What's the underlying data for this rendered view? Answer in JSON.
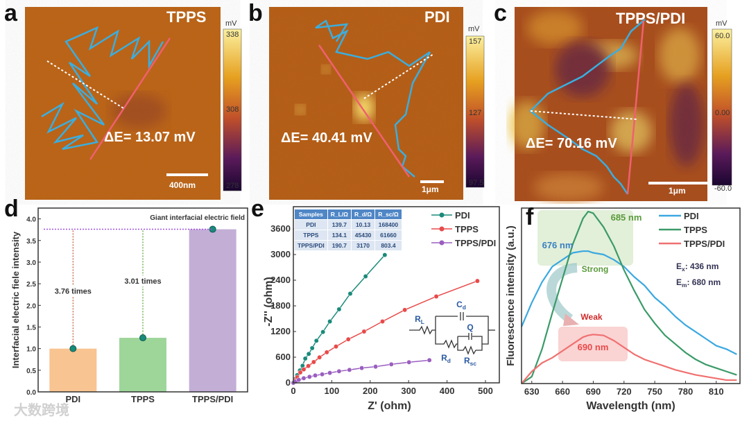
{
  "panels": {
    "a": "a",
    "b": "b",
    "c": "c",
    "d": "d",
    "e": "e",
    "f": "f"
  },
  "afm": [
    {
      "title": "TPPS",
      "delta": "ΔE= 13.07 mV",
      "scale": "400nm",
      "unit": "mV",
      "cbar": [
        "338",
        "308",
        "278"
      ]
    },
    {
      "title": "PDI",
      "delta": "ΔE= 40.41 mV",
      "scale": "1μm",
      "unit": "mV",
      "cbar": [
        "157",
        "127",
        "97.5"
      ]
    },
    {
      "title": "TPPS/PDI",
      "delta": "ΔE= 70.16 mV",
      "scale": "1μm",
      "unit": "mV",
      "cbar": [
        "60.0",
        "0.00",
        "-60.0"
      ]
    }
  ],
  "watermark": "大数跨境",
  "chart_data": [
    {
      "type": "bar",
      "title": "",
      "categories": [
        "PDI",
        "TPPS",
        "TPPS/PDI"
      ],
      "values": [
        1.0,
        1.25,
        3.76
      ],
      "colors": [
        "#f8c491",
        "#9ed69a",
        "#c3aed6"
      ],
      "ylabel": "Interfacial electric fiele intensity",
      "xlabel": "",
      "ylim": [
        0,
        4.25
      ],
      "yticks": [
        0.0,
        0.5,
        1.0,
        1.5,
        2.0,
        2.5,
        3.0,
        3.5,
        4.0
      ],
      "annotations": {
        "top": "Giant interfacial electric field",
        "pdi_ratio": "3.76 times",
        "tpps_ratio": "3.01 times"
      }
    },
    {
      "type": "line",
      "xlabel": "Z' (ohm)",
      "ylabel": "-Z'' (ohm)",
      "xlim": [
        0,
        520
      ],
      "ylim": [
        0,
        3800
      ],
      "xticks": [
        0,
        100,
        200,
        300,
        400,
        500
      ],
      "yticks": [
        0,
        600,
        1200,
        1800,
        2400,
        3000,
        3600
      ],
      "series": [
        {
          "name": "PDI",
          "color": "#1a8a7a",
          "x": [
            0,
            5,
            10,
            17,
            24,
            31,
            40,
            49,
            60,
            77,
            95,
            119,
            148,
            188,
            238
          ],
          "y": [
            0,
            90,
            180,
            290,
            400,
            568,
            677,
            812,
            985,
            1190,
            1435,
            1720,
            2085,
            2490,
            2990
          ]
        },
        {
          "name": "TPPS",
          "color": "#e84a4a",
          "x": [
            0,
            5,
            10,
            18,
            27,
            39,
            53,
            68,
            87,
            111,
            143,
            184,
            232,
            290,
            372,
            479
          ],
          "y": [
            0,
            60,
            130,
            244,
            314,
            395,
            487,
            596,
            715,
            850,
            1018,
            1200,
            1435,
            1705,
            2020,
            2382
          ]
        },
        {
          "name": "TPPS/PDI",
          "color": "#9a5ec0",
          "x": [
            0,
            6,
            14,
            27,
            42,
            57,
            75,
            95,
            119,
            146,
            178,
            214,
            255,
            301,
            354
          ],
          "y": [
            0,
            30,
            70,
            108,
            141,
            173,
            200,
            233,
            271,
            303,
            347,
            379,
            433,
            482,
            530
          ]
        }
      ],
      "table": {
        "headers": [
          "Samples",
          "R_L/Ω",
          "R_d/Ω",
          "R_sc/Ω"
        ],
        "rows": [
          [
            "PDI",
            "139.7",
            "10.13",
            "168400"
          ],
          [
            "TPPS",
            "134.1",
            "45430",
            "61660"
          ],
          [
            "TPPS/PDI",
            "190.7",
            "3170",
            "803.4"
          ]
        ]
      },
      "circuit": {
        "rl": "R",
        "rl_sub": "L",
        "cd": "C",
        "cd_sub": "d",
        "q": "Q",
        "rd": "R",
        "rd_sub": "d",
        "rsc": "R",
        "rsc_sub": "sc"
      }
    },
    {
      "type": "line",
      "xlabel": "Wavelength (nm)",
      "ylabel": "Fluorescence intensity (a.u.)",
      "xlim": [
        620,
        833
      ],
      "ylim": [
        0,
        1.02
      ],
      "xticks": [
        630,
        660,
        690,
        720,
        750,
        780,
        810
      ],
      "x": [
        620,
        630,
        640,
        650,
        660,
        670,
        680,
        685,
        690,
        700,
        710,
        720,
        730,
        740,
        750,
        760,
        770,
        780,
        790,
        800,
        810,
        820,
        830
      ],
      "series": [
        {
          "name": "PDI",
          "color": "#3aa8e0",
          "values": [
            0.33,
            0.47,
            0.59,
            0.68,
            0.72,
            0.76,
            0.77,
            0.77,
            0.76,
            0.75,
            0.72,
            0.68,
            0.62,
            0.57,
            0.5,
            0.45,
            0.39,
            0.34,
            0.3,
            0.26,
            0.22,
            0.2,
            0.17
          ]
        },
        {
          "name": "TPPS",
          "color": "#3a9a68",
          "values": [
            0.0,
            0.04,
            0.2,
            0.41,
            0.61,
            0.81,
            0.96,
            1.0,
            0.99,
            0.91,
            0.8,
            0.66,
            0.54,
            0.43,
            0.35,
            0.28,
            0.23,
            0.18,
            0.14,
            0.11,
            0.09,
            0.07,
            0.05
          ]
        },
        {
          "name": "TPPS/PDI",
          "color": "#f07070",
          "values": [
            0.0,
            0.07,
            0.12,
            0.15,
            0.19,
            0.23,
            0.27,
            0.28,
            0.285,
            0.28,
            0.25,
            0.21,
            0.17,
            0.14,
            0.12,
            0.1,
            0.08,
            0.065,
            0.05,
            0.04,
            0.03,
            0.02,
            0.02
          ]
        }
      ],
      "annotations": {
        "pdi_peak": "676 nm",
        "tpps_peak": "685 nm",
        "mix_peak": "690 nm",
        "strong": "Strong",
        "weak": "Weak",
        "ex": "E",
        "ex_sub": "x",
        "ex_val": ":  436 nm",
        "em": "E",
        "em_sub": "m",
        "em_val": ": 680 nm"
      }
    }
  ]
}
